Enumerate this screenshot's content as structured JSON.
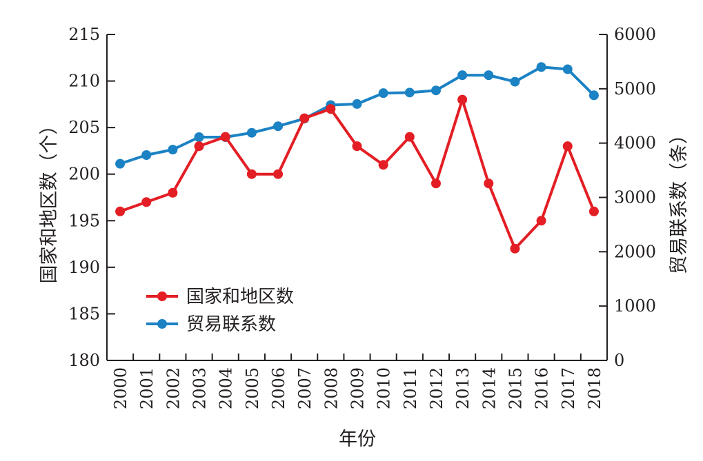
{
  "chart_data": {
    "type": "line",
    "xlabel": "年份",
    "ylabel_left": "国家和地区数（个）",
    "ylabel_right": "贸易联系数（条）",
    "categories": [
      "2000",
      "2001",
      "2002",
      "2003",
      "2004",
      "2005",
      "2006",
      "2007",
      "2008",
      "2009",
      "2010",
      "2011",
      "2012",
      "2013",
      "2014",
      "2015",
      "2016",
      "2017",
      "2018"
    ],
    "ylim_left": [
      180,
      215
    ],
    "yticks_left": [
      "180",
      "185",
      "190",
      "195",
      "200",
      "205",
      "210",
      "215"
    ],
    "ylim_right": [
      0,
      6000
    ],
    "yticks_right": [
      "0",
      "1000",
      "2000",
      "3000",
      "4000",
      "5000",
      "6000"
    ],
    "grid": false,
    "legend_position": "left",
    "series": [
      {
        "name": "国家和地区数",
        "axis": "left",
        "color": "#e31e24",
        "values": [
          196,
          197,
          198,
          203,
          204,
          200,
          200,
          206,
          207,
          203,
          201,
          204,
          199,
          208,
          199,
          192,
          195,
          203,
          196
        ]
      },
      {
        "name": "贸易联系数",
        "axis": "right",
        "color": "#1b82c4",
        "values": [
          3620,
          3780,
          3880,
          4110,
          4110,
          4190,
          4310,
          4450,
          4700,
          4720,
          4920,
          4930,
          4970,
          5250,
          5250,
          5130,
          5400,
          5360,
          4880
        ]
      }
    ]
  }
}
